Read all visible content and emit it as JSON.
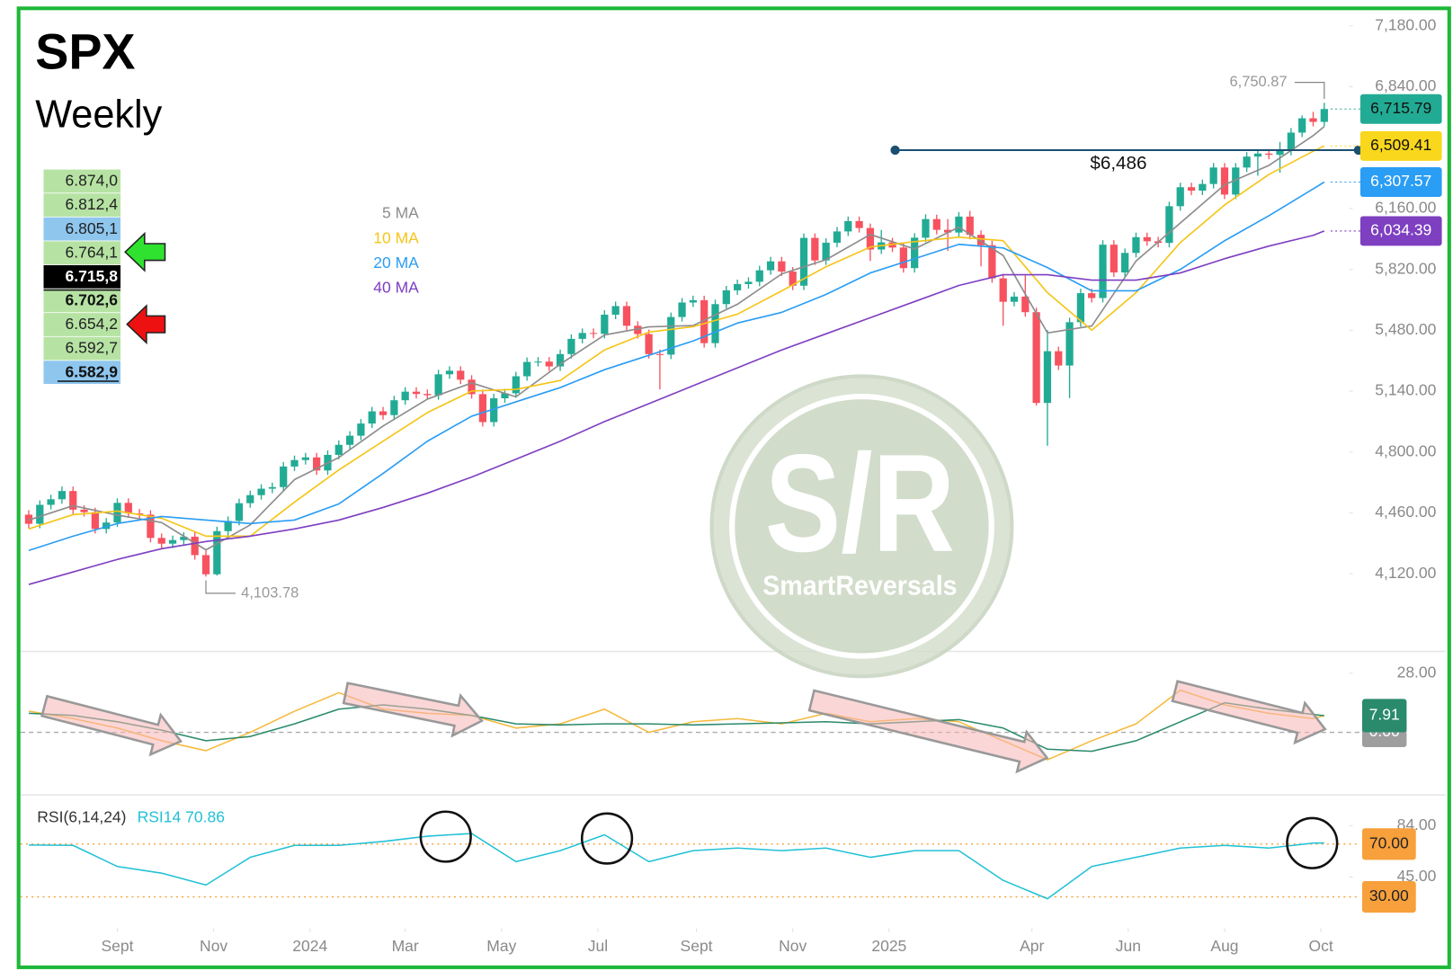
{
  "chart_data": [
    {
      "type": "candlestick",
      "title": "SPX",
      "subtitle": "Weekly",
      "open": [
        4450,
        4399,
        4505,
        4536,
        4582,
        4478,
        4464,
        4370,
        4406,
        4516,
        4457,
        4450,
        4320,
        4288,
        4308,
        4327,
        4224,
        4117,
        4358,
        4415,
        4514,
        4559,
        4595,
        4604,
        4719,
        4755,
        4770,
        4697,
        4784,
        4840,
        4891,
        4959,
        5027,
        5006,
        5089,
        5137,
        5124,
        5117,
        5234,
        5254,
        5204,
        5123,
        4967,
        5100,
        5128,
        5223,
        5303,
        5305,
        5278,
        5347,
        5432,
        5465,
        5460,
        5567,
        5615,
        5505,
        5459,
        5347,
        5344,
        5554,
        5635,
        5648,
        5408,
        5626,
        5703,
        5738,
        5751,
        5815,
        5865,
        5808,
        5729,
        5996,
        5870,
        5969,
        6032,
        6090,
        6051,
        5931,
        5971,
        5942,
        5827,
        5997,
        6101,
        6041,
        6026,
        6115,
        6013,
        5955,
        5770,
        5639,
        5668,
        5581,
        5074,
        5363,
        5283,
        5525,
        5687,
        5660,
        5958,
        5803,
        5912,
        6000,
        5977,
        5968,
        6173,
        6279,
        6260,
        6297,
        6389,
        6238,
        6389,
        6450,
        6467,
        6460,
        6482,
        6584,
        6664,
        6644
      ],
      "high": [
        4475,
        4530,
        4561,
        4607,
        4607,
        4503,
        4489,
        4431,
        4541,
        4541,
        4482,
        4475,
        4345,
        4333,
        4352,
        4352,
        4249,
        4383,
        4440,
        4539,
        4584,
        4620,
        4629,
        4744,
        4780,
        4795,
        4795,
        4809,
        4865,
        4916,
        4984,
        5052,
        5052,
        5114,
        5162,
        5162,
        5149,
        5259,
        5279,
        5279,
        5229,
        5148,
        5125,
        5153,
        5248,
        5328,
        5330,
        5330,
        5372,
        5457,
        5490,
        5490,
        5592,
        5640,
        5640,
        5530,
        5484,
        5372,
        5579,
        5660,
        5673,
        5673,
        5651,
        5728,
        5763,
        5776,
        5840,
        5890,
        5890,
        5833,
        6021,
        6021,
        5994,
        6057,
        6115,
        6115,
        6076,
        6040,
        5996,
        5967,
        6022,
        6128,
        6126,
        6101,
        6140,
        6147,
        6038,
        5980,
        5795,
        5693,
        5786,
        5606,
        5481,
        5388,
        5550,
        5712,
        5712,
        5983,
        5983,
        5937,
        6025,
        6025,
        6002,
        6198,
        6304,
        6304,
        6322,
        6414,
        6414,
        6414,
        6475,
        6490,
        6492,
        6532,
        6609,
        6680,
        6700,
        6750.87
      ],
      "low": [
        4374,
        4374,
        4480,
        4511,
        4453,
        4439,
        4345,
        4345,
        4381,
        4432,
        4425,
        4295,
        4263,
        4263,
        4283,
        4199,
        4103.78,
        4110,
        4333,
        4390,
        4489,
        4534,
        4570,
        4579,
        4694,
        4730,
        4672,
        4672,
        4759,
        4815,
        4866,
        4934,
        4981,
        4981,
        5064,
        5099,
        5092,
        5092,
        5209,
        5179,
        5098,
        4942,
        4942,
        5075,
        5103,
        5198,
        5278,
        5253,
        5253,
        5322,
        5407,
        5435,
        5435,
        5542,
        5480,
        5434,
        5322,
        5150,
        5319,
        5529,
        5610,
        5383,
        5383,
        5601,
        5678,
        5713,
        5726,
        5790,
        5783,
        5704,
        5704,
        5845,
        5845,
        5944,
        6007,
        6026,
        5867,
        5906,
        5917,
        5802,
        5802,
        5972,
        6016,
        5923,
        6001,
        5988,
        5837,
        5745,
        5505,
        5614,
        5556,
        5060,
        4835,
        5258,
        5101,
        5500,
        5635,
        5635,
        5778,
        5778,
        5887,
        5952,
        5943,
        5943,
        6148,
        6235,
        6235,
        6272,
        6213,
        6213,
        6364,
        6343,
        6435,
        6360,
        6457,
        6559,
        6619,
        6619
      ],
      "close": [
        4399,
        4505,
        4536,
        4582,
        4478,
        4464,
        4370,
        4406,
        4516,
        4457,
        4450,
        4320,
        4288,
        4308,
        4327,
        4224,
        4117,
        4358,
        4415,
        4514,
        4559,
        4595,
        4604,
        4719,
        4755,
        4770,
        4697,
        4784,
        4840,
        4891,
        4959,
        5027,
        5006,
        5089,
        5137,
        5124,
        5117,
        5234,
        5254,
        5204,
        5123,
        4967,
        5100,
        5128,
        5223,
        5303,
        5305,
        5278,
        5347,
        5432,
        5465,
        5460,
        5567,
        5615,
        5505,
        5459,
        5347,
        5344,
        5554,
        5635,
        5648,
        5408,
        5626,
        5703,
        5738,
        5751,
        5815,
        5865,
        5808,
        5729,
        5996,
        5870,
        5969,
        6032,
        6090,
        6051,
        5931,
        5971,
        5942,
        5827,
        5997,
        6101,
        6041,
        6026,
        6115,
        6013,
        5955,
        5770,
        5639,
        5668,
        5581,
        5074,
        5363,
        5283,
        5525,
        5687,
        5660,
        5958,
        5803,
        5912,
        6000,
        5977,
        5968,
        6173,
        6279,
        6260,
        6297,
        6389,
        6238,
        6389,
        6450,
        6467,
        6460,
        6482,
        6584,
        6664,
        6644,
        6715.79
      ],
      "up_color": "#22ab94",
      "down_color": "#f7525f",
      "xlim": [
        -0.75,
        119.25
      ],
      "ylim": [
        3702,
        7273
      ],
      "yticks": [
        {
          "value": 4120,
          "label": "4,120.00"
        },
        {
          "value": 4460,
          "label": "4,460.00"
        },
        {
          "value": 4800,
          "label": "4,800.00"
        },
        {
          "value": 5140,
          "label": "5,140.00"
        },
        {
          "value": 5480,
          "label": "5,480.00"
        },
        {
          "value": 5820,
          "label": "5,820.00"
        },
        {
          "value": 6160,
          "label": "6,160.00"
        },
        {
          "value": 6840,
          "label": "6,840.00"
        },
        {
          "value": 7180,
          "label": "7,180.00"
        }
      ],
      "ma_x": [
        0,
        4,
        8,
        12,
        16,
        20,
        24,
        28,
        32,
        36,
        40,
        44,
        48,
        52,
        56,
        60,
        64,
        68,
        72,
        76,
        80,
        84,
        88,
        92,
        96,
        100,
        104,
        108,
        112,
        116,
        117
      ],
      "ma_series": [
        {
          "name": "5 MA",
          "color": "#8c8c8c",
          "values": [
            4420,
            4500,
            4447,
            4406,
            4253,
            4393,
            4646,
            4769,
            4945,
            5095,
            5186,
            5108,
            5291,
            5454,
            5499,
            5506,
            5625,
            5795,
            5874,
            6015,
            5934,
            6056,
            5898,
            5465,
            5504,
            5867,
            6079,
            6293,
            6401,
            6567,
            6618
          ]
        },
        {
          "name": "10 MA",
          "color": "#f5c518",
          "values": [
            4370,
            4450,
            4470,
            4430,
            4330,
            4330,
            4520,
            4700,
            4860,
            5020,
            5140,
            5150,
            5200,
            5370,
            5470,
            5500,
            5570,
            5700,
            5835,
            5945,
            5975,
            6000,
            5980,
            5690,
            5480,
            5690,
            5970,
            6180,
            6350,
            6480,
            6509.41
          ]
        },
        {
          "name": "20 MA",
          "color": "#2a9df4",
          "values": [
            4250,
            4330,
            4400,
            4440,
            4420,
            4400,
            4420,
            4510,
            4680,
            4860,
            5000,
            5080,
            5160,
            5260,
            5340,
            5420,
            5520,
            5580,
            5680,
            5800,
            5880,
            5960,
            5940,
            5830,
            5700,
            5700,
            5820,
            5980,
            6120,
            6270,
            6307.57
          ]
        },
        {
          "name": "40 MA",
          "color": "#7e3fc1",
          "values": [
            4060,
            4130,
            4200,
            4260,
            4300,
            4330,
            4370,
            4420,
            4490,
            4570,
            4660,
            4760,
            4860,
            4970,
            5070,
            5170,
            5270,
            5370,
            5460,
            5550,
            5640,
            5730,
            5790,
            5790,
            5760,
            5760,
            5800,
            5880,
            5950,
            6010,
            6034.39
          ]
        }
      ],
      "price_labels": [
        {
          "value": 6715.79,
          "label": "6,715.79",
          "color": "#22ab94",
          "text_color": "#111111"
        },
        {
          "value": 6509.41,
          "label": "6,509.41",
          "color": "#f9d71c",
          "text_color": "#111111"
        },
        {
          "value": 6307.57,
          "label": "6,307.57",
          "color": "#2a9df4",
          "text_color": "#ffffff"
        },
        {
          "value": 6034.39,
          "label": "6,034.39",
          "color": "#7e3fc1",
          "text_color": "#ffffff"
        }
      ],
      "extremes": [
        {
          "value": 6750.87,
          "label": "6,750.87"
        },
        {
          "value": 4103.78,
          "label": "4,103.78"
        }
      ],
      "level": {
        "value": 6486,
        "label": "$6,486",
        "color": "#1b4f72"
      }
    },
    {
      "type": "line",
      "x": [
        0,
        4,
        8,
        12,
        16,
        20,
        24,
        28,
        32,
        36,
        40,
        44,
        48,
        52,
        56,
        60,
        64,
        68,
        72,
        76,
        80,
        84,
        88,
        92,
        96,
        100,
        104,
        108,
        112,
        116,
        117
      ],
      "xlim": [
        -0.75,
        119.25
      ],
      "ylim": [
        -28.4,
        37.1
      ],
      "yticks": [
        {
          "value": 28,
          "label": "28.00"
        }
      ],
      "baseline": {
        "value": 0,
        "label": "0.00"
      },
      "series": [
        {
          "color": "#f6b93b",
          "values": [
            10,
            6.5,
            2,
            -4,
            -8.7,
            0,
            10,
            18.8,
            11,
            9,
            8,
            2,
            4,
            11,
            0,
            5,
            6.5,
            4,
            9,
            5,
            6.5,
            5,
            -4,
            -13,
            -4,
            4,
            20,
            13,
            9,
            6.5,
            8
          ]
        },
        {
          "color": "#2a8a6c",
          "values": [
            9,
            8,
            5,
            1,
            -4,
            -2,
            4,
            11,
            13,
            11,
            8,
            4,
            3.5,
            4,
            4,
            3.5,
            4,
            4.5,
            5,
            4,
            5,
            6,
            2,
            -8,
            -9,
            -4,
            5,
            14,
            11,
            8.5,
            7.91
          ]
        }
      ]
    },
    {
      "type": "line",
      "title": "RSI(6,14,24)",
      "x": [
        0,
        4,
        8,
        12,
        16,
        20,
        24,
        28,
        32,
        36,
        40,
        44,
        48,
        52,
        56,
        60,
        64,
        68,
        72,
        76,
        80,
        84,
        88,
        92,
        96,
        100,
        104,
        108,
        112,
        116,
        117
      ],
      "xlim": [
        -0.75,
        119.25
      ],
      "ylim": [
        11.05,
        105.8
      ],
      "yticks": [
        {
          "value": 84,
          "label": "84.00"
        },
        {
          "value": 45,
          "label": "45.00"
        }
      ],
      "levels": [
        {
          "value": 70,
          "label": "70.00"
        },
        {
          "value": 30,
          "label": "30.00"
        }
      ],
      "level_color": "#f7a03c",
      "series": [
        {
          "name": "RSI14",
          "color": "#22c1d6",
          "values": [
            69.3,
            69,
            53,
            48,
            39,
            60,
            69,
            69,
            72,
            76,
            78,
            56.7,
            65,
            77,
            56.7,
            65,
            67,
            65,
            67,
            60,
            65,
            65,
            42.5,
            28.6,
            53,
            60,
            67,
            69,
            67,
            70.7,
            70.86
          ]
        }
      ],
      "xticks": [
        {
          "value": 8,
          "label": "Sept"
        },
        {
          "value": 16.7,
          "label": "Nov"
        },
        {
          "value": 25.4,
          "label": "2024"
        },
        {
          "value": 34,
          "label": "Mar"
        },
        {
          "value": 42.7,
          "label": "May"
        },
        {
          "value": 51.4,
          "label": "Jul"
        },
        {
          "value": 60.3,
          "label": "Sept"
        },
        {
          "value": 69,
          "label": "Nov"
        },
        {
          "value": 77.7,
          "label": "2025"
        },
        {
          "value": 90.6,
          "label": "Apr"
        },
        {
          "value": 99.3,
          "label": "Jun"
        },
        {
          "value": 108,
          "label": "Aug"
        },
        {
          "value": 116.7,
          "label": "Oct"
        }
      ]
    }
  ],
  "level_table": {
    "rows": [
      "6.874,0",
      "6.812,4",
      "6.805,1",
      "6.764,1",
      "6.715,8",
      "6.702,6",
      "6.654,2",
      "6.592,7",
      "6.582,9"
    ]
  },
  "watermark": {
    "logo": "S/R",
    "brand": "SmartReversals"
  }
}
